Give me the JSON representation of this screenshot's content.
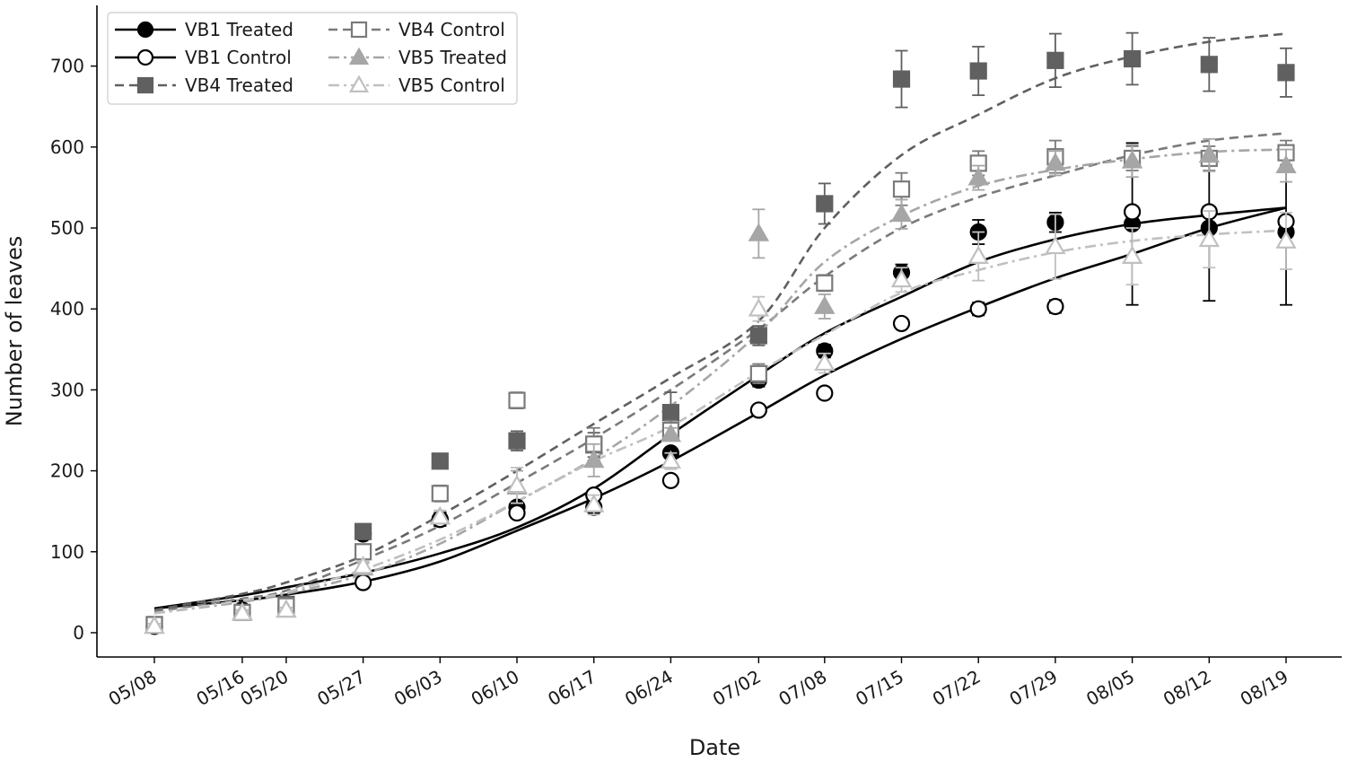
{
  "chart_data": {
    "type": "scatter",
    "title": "",
    "xlabel": "Date",
    "ylabel": "Number of leaves",
    "ylim": [
      -30,
      775
    ],
    "yticks": [
      0,
      100,
      200,
      300,
      400,
      500,
      600,
      700
    ],
    "categories": [
      "05/08",
      "05/16",
      "05/20",
      "05/27",
      "06/03",
      "06/10",
      "06/17",
      "06/24",
      "07/02",
      "07/08",
      "07/15",
      "07/22",
      "07/29",
      "08/05",
      "08/12",
      "08/19"
    ],
    "day_offsets": [
      0,
      8,
      12,
      19,
      26,
      33,
      40,
      47,
      55,
      61,
      68,
      75,
      82,
      89,
      96,
      103
    ],
    "grid": false,
    "legend_position": "top-left",
    "series": [
      {
        "name": "VB1 Treated",
        "color": "#000000",
        "marker": "circle",
        "filled": true,
        "line_style": "solid",
        "values": [
          8,
          28,
          33,
          122,
          140,
          155,
          155,
          222,
          312,
          348,
          445,
          495,
          507,
          505,
          500,
          495
        ],
        "errors": [
          3,
          3,
          3,
          5,
          8,
          6,
          5,
          6,
          8,
          8,
          10,
          15,
          12,
          100,
          90,
          90
        ],
        "fit": [
          30,
          46,
          56,
          74,
          98,
          130,
          178,
          245,
          318,
          370,
          415,
          458,
          486,
          505,
          516,
          525
        ]
      },
      {
        "name": "VB1 Control",
        "color": "#000000",
        "marker": "circle",
        "filled": false,
        "line_style": "solid",
        "values": [
          8,
          25,
          30,
          62,
          140,
          148,
          170,
          188,
          275,
          296,
          382,
          400,
          403,
          520,
          520,
          508
        ],
        "errors": [
          3,
          3,
          3,
          4,
          8,
          6,
          5,
          5,
          5,
          6,
          6,
          8,
          8,
          6,
          6,
          6
        ],
        "fit": [
          30,
          40,
          47,
          63,
          88,
          126,
          166,
          212,
          272,
          318,
          363,
          402,
          438,
          468,
          500,
          525
        ]
      },
      {
        "name": "VB4 Treated",
        "color": "#606060",
        "marker": "square",
        "filled": true,
        "line_style": "dashed",
        "values": [
          10,
          25,
          35,
          125,
          212,
          237,
          232,
          272,
          367,
          530,
          684,
          694,
          707,
          709,
          702,
          692
        ],
        "errors": [
          3,
          3,
          3,
          8,
          6,
          12,
          15,
          25,
          12,
          25,
          35,
          30,
          33,
          32,
          33,
          30
        ],
        "fit": [
          28,
          48,
          62,
          95,
          145,
          200,
          258,
          315,
          385,
          500,
          590,
          640,
          685,
          712,
          730,
          740
        ]
      },
      {
        "name": "VB4 Control",
        "color": "#7a7a7a",
        "marker": "square",
        "filled": false,
        "line_style": "dashed",
        "values": [
          10,
          25,
          33,
          100,
          172,
          287,
          233,
          250,
          320,
          432,
          548,
          580,
          588,
          586,
          586,
          593
        ],
        "errors": [
          3,
          3,
          3,
          6,
          10,
          10,
          20,
          12,
          12,
          10,
          20,
          15,
          20,
          15,
          15,
          15
        ],
        "fit": [
          26,
          42,
          52,
          90,
          132,
          185,
          240,
          300,
          375,
          440,
          500,
          538,
          565,
          590,
          608,
          617
        ]
      },
      {
        "name": "VB5 Treated",
        "color": "#a6a6a6",
        "marker": "triangle",
        "filled": true,
        "line_style": "dashdot",
        "values": [
          8,
          25,
          28,
          80,
          143,
          180,
          213,
          245,
          493,
          403,
          517,
          562,
          580,
          583,
          590,
          577
        ],
        "errors": [
          3,
          3,
          3,
          6,
          8,
          20,
          20,
          8,
          30,
          15,
          18,
          15,
          15,
          20,
          20,
          20
        ],
        "fit": [
          24,
          38,
          48,
          72,
          110,
          162,
          215,
          280,
          370,
          458,
          515,
          552,
          572,
          585,
          594,
          597
        ]
      },
      {
        "name": "VB5 Control",
        "color": "#c0c0c0",
        "marker": "triangle",
        "filled": false,
        "line_style": "dashdot",
        "values": [
          8,
          24,
          28,
          82,
          143,
          182,
          158,
          212,
          400,
          333,
          436,
          465,
          477,
          465,
          486,
          484
        ],
        "errors": [
          3,
          3,
          3,
          6,
          8,
          22,
          12,
          10,
          15,
          12,
          15,
          30,
          40,
          35,
          35,
          35
        ],
        "fit": [
          24,
          40,
          50,
          78,
          115,
          162,
          212,
          255,
          322,
          368,
          420,
          448,
          470,
          484,
          492,
          497
        ]
      }
    ]
  }
}
